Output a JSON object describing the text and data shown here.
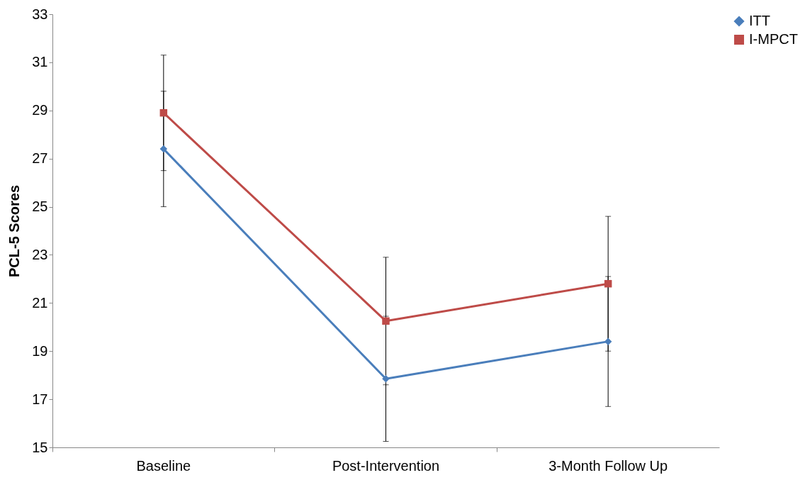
{
  "chart_data": {
    "type": "line",
    "ylabel": "PCL-5 Scores",
    "categories": [
      "Baseline",
      "Post-Intervention",
      "3-Month Follow Up"
    ],
    "series": [
      {
        "name": "ITT",
        "color": "#4a7ebb",
        "marker": "diamond",
        "values": [
          27.4,
          17.85,
          19.4
        ],
        "errors": [
          2.4,
          2.6,
          2.7
        ]
      },
      {
        "name": "I-MPCT",
        "color": "#be4b48",
        "marker": "square",
        "values": [
          28.9,
          20.25,
          21.8
        ],
        "errors": [
          2.4,
          2.65,
          2.8
        ]
      }
    ],
    "ylim": [
      15,
      33
    ],
    "yticks": [
      15,
      17,
      19,
      21,
      23,
      25,
      27,
      29,
      31,
      33
    ],
    "grid": false,
    "legend": "right",
    "line_style": "solid"
  }
}
